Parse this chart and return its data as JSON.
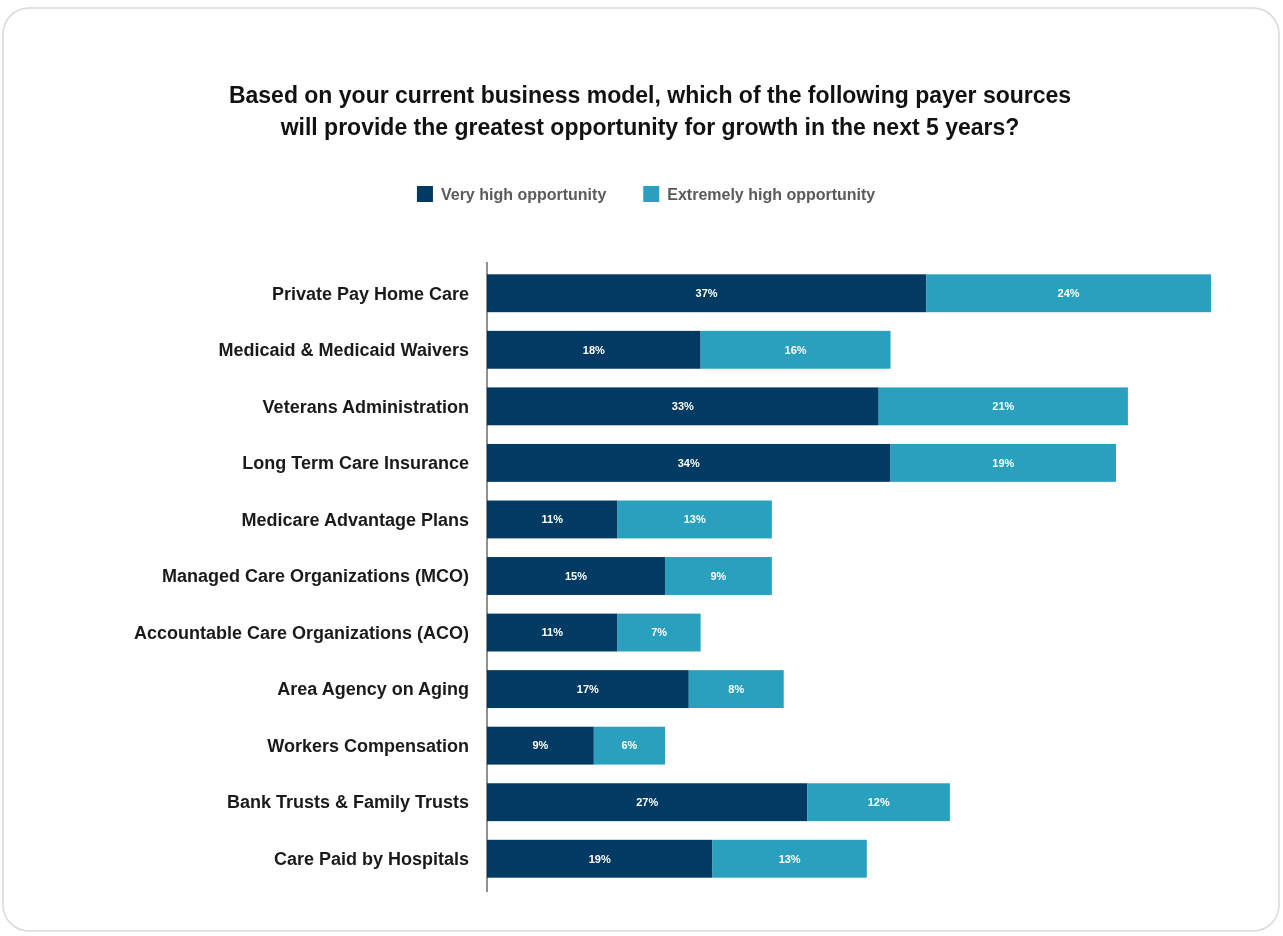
{
  "chart_data": {
    "type": "bar",
    "orientation": "horizontal",
    "stacked": true,
    "legend": "top",
    "title": "Based on your current business model, which of the following payer sources\nwill provide the greatest opportunity for growth in the next 5 years?",
    "categories": [
      "Private Pay Home Care",
      "Medicaid & Medicaid Waivers",
      "Veterans Administration",
      "Long Term Care Insurance",
      "Medicare Advantage Plans",
      "Managed Care Organizations (MCO)",
      "Accountable Care Organizations (ACO)",
      "Area Agency on Aging",
      "Workers Compensation",
      "Bank Trusts & Family Trusts",
      "Care Paid by Hospitals"
    ],
    "series": [
      {
        "name": "Very high opportunity",
        "color": "#013a63",
        "values": [
          37,
          18,
          33,
          34,
          11,
          15,
          11,
          17,
          9,
          27,
          19
        ],
        "value_labels": [
          "37%",
          "18%",
          "33%",
          "34%",
          "11%",
          "15%",
          "11%",
          "17%",
          "9%",
          "27%",
          "19%"
        ]
      },
      {
        "name": "Extremely high opportunity",
        "color": "#2aa0bf",
        "values": [
          24,
          16,
          21,
          19,
          13,
          9,
          7,
          8,
          6,
          12,
          13
        ],
        "value_labels": [
          "24%",
          "16%",
          "21%",
          "19%",
          "13%",
          "9%",
          "7%",
          "8%",
          "6%",
          "12%",
          "13%"
        ]
      }
    ]
  }
}
